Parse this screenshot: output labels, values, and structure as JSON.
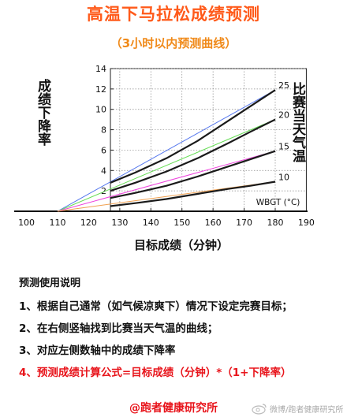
{
  "title": "高温下马拉松成绩预测",
  "subtitle": "（3小时以内预测曲线）",
  "chart_data": {
    "type": "line",
    "ylabel": "成绩下降率",
    "right_label": "比赛当天气温",
    "xlabel": "目标成绩（分钟）",
    "units_label": "WBGT (°C)",
    "xlim": [
      95,
      190
    ],
    "ylim": [
      0,
      14
    ],
    "x_ticks": [
      100,
      110,
      120,
      130,
      140,
      150,
      160,
      170,
      180,
      190
    ],
    "y_ticks": [
      2,
      4,
      6,
      8,
      10,
      12,
      14
    ],
    "grid": true,
    "series": [
      {
        "name": "25",
        "color": "#1a1a1a",
        "x": [
          127,
          135,
          145,
          155,
          165,
          172,
          180
        ],
        "y": [
          2.8,
          3.8,
          5.2,
          6.9,
          8.9,
          10.3,
          11.9
        ]
      },
      {
        "name": "20",
        "color": "#1a1a1a",
        "x": [
          127,
          135,
          145,
          155,
          165,
          172,
          180
        ],
        "y": [
          2.0,
          2.8,
          3.9,
          5.2,
          6.7,
          7.8,
          9.0
        ]
      },
      {
        "name": "15",
        "color": "#1a1a1a",
        "x": [
          127,
          135,
          145,
          155,
          165,
          172,
          180
        ],
        "y": [
          1.3,
          1.8,
          2.5,
          3.4,
          4.4,
          5.1,
          5.9
        ]
      },
      {
        "name": "10",
        "color": "#1a1a1a",
        "x": [
          127,
          135,
          145,
          155,
          165,
          172,
          180
        ],
        "y": [
          0.5,
          0.8,
          1.2,
          1.7,
          2.2,
          2.5,
          2.9
        ]
      }
    ],
    "reference_lines": [
      {
        "color": "#5577ee",
        "x": [
          110,
          180
        ],
        "y": [
          0,
          11.9
        ]
      },
      {
        "color": "#66dd55",
        "x": [
          110,
          180
        ],
        "y": [
          0,
          9.0
        ]
      },
      {
        "color": "#ee44dd",
        "x": [
          110,
          180
        ],
        "y": [
          0,
          5.9
        ]
      },
      {
        "color": "#f0a050",
        "x": [
          110,
          180
        ],
        "y": [
          0,
          2.9
        ]
      }
    ]
  },
  "instructions": {
    "heading": "预测使用说明",
    "items": [
      "1、根据自己通常（如气候凉爽下）情况下设定完赛目标；",
      "2、在右侧竖轴找到比赛当天气温的曲线；",
      "3、对应左侧数轴中的成绩下降率",
      "4、预测成绩计算公式=目标成绩（分钟）*（1+下降率）"
    ]
  },
  "credit": "@跑者健康研究所",
  "watermark": "微博/跑者健康研究所"
}
